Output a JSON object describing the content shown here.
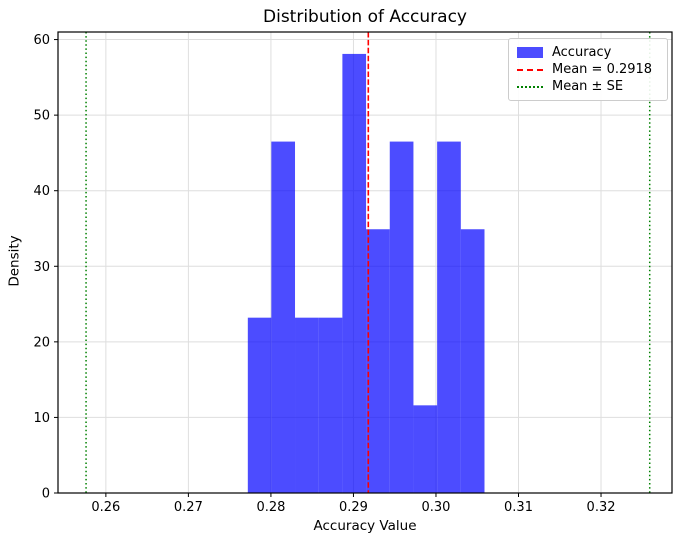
{
  "figure": {
    "title": "Distribution of Accuracy",
    "xlabel": "Accuracy Value",
    "ylabel": "Density"
  },
  "legend": {
    "position": "upper right",
    "items": [
      {
        "label": "Accuracy",
        "type": "patch",
        "color": "#0000ff",
        "alpha": 0.7
      },
      {
        "label": "Mean = 0.2918",
        "type": "dashed",
        "color": "#ff0000"
      },
      {
        "label": "Mean ± SE",
        "type": "dotted",
        "color": "#008000"
      }
    ]
  },
  "chart_data": {
    "type": "bar",
    "subtype": "histogram",
    "title": "Distribution of Accuracy",
    "xlabel": "Accuracy Value",
    "ylabel": "Density",
    "bin_edges": [
      0.2772,
      0.28005,
      0.28292,
      0.28579,
      0.28866,
      0.29153,
      0.2944,
      0.29727,
      0.30014,
      0.30301,
      0.30588
    ],
    "densities": [
      23.2,
      46.5,
      23.2,
      23.2,
      58.1,
      34.9,
      46.5,
      11.6,
      46.5,
      34.9
    ],
    "mean": 0.2918,
    "se_lower": 0.2576,
    "se_upper": 0.3259,
    "xlim": [
      0.2542,
      0.3286
    ],
    "ylim": [
      0,
      61
    ],
    "x_ticks": [
      0.26,
      0.27,
      0.28,
      0.29,
      0.3,
      0.31,
      0.32
    ],
    "y_ticks": [
      0,
      10,
      20,
      30,
      40,
      50,
      60
    ],
    "grid": true,
    "grid_color": "#dedede",
    "bar_color": "#0000ff",
    "bar_alpha": 0.7,
    "mean_line_color": "#ff0000",
    "se_line_color": "#008000",
    "axis_color": "#000000",
    "legend_position": "upper right"
  }
}
